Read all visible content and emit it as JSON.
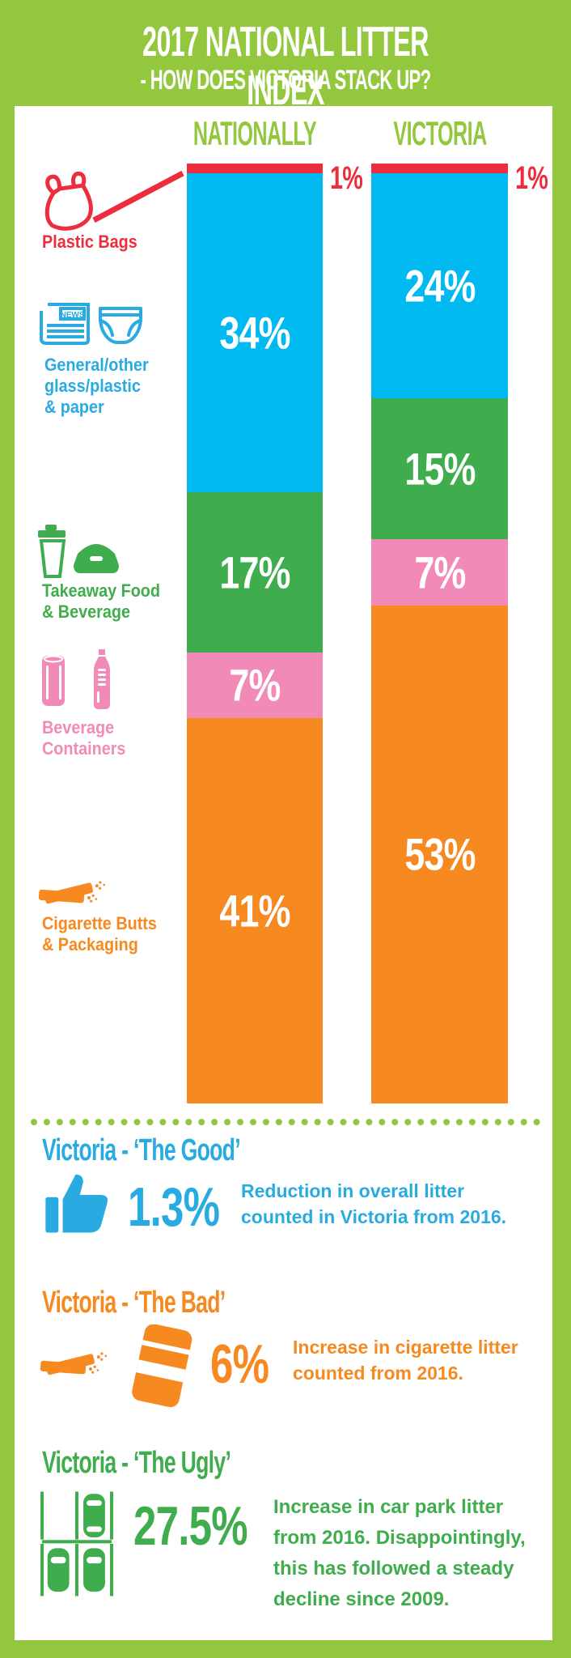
{
  "header": {
    "title": "2017 NATIONAL LITTER INDEX",
    "subtitle": "- HOW DOES VICTORIA STACK UP?"
  },
  "columns": [
    "NATIONALLY",
    "VICTORIA"
  ],
  "chart_data": {
    "type": "bar",
    "stacked": true,
    "unit": "%",
    "title": "2017 National Litter Index - How does Victoria stack up?",
    "categories": [
      "Plastic Bags",
      "General/other glass/plastic & paper",
      "Takeaway Food & Beverage",
      "Beverage Containers",
      "Cigarette Butts & Packaging"
    ],
    "category_ids": [
      "plastic-bags",
      "general-other-glass-plastic-paper",
      "takeaway-food-beverage",
      "beverage-containers",
      "cigarette-butts-packaging"
    ],
    "colors": [
      "#ED2C3E",
      "#00B9F0",
      "#3FAD4D",
      "#F28AB8",
      "#F6891F"
    ],
    "series": [
      {
        "name": "NATIONALLY",
        "values": [
          1,
          34,
          17,
          7,
          41
        ]
      },
      {
        "name": "VICTORIA",
        "values": [
          1,
          24,
          15,
          7,
          53
        ]
      }
    ],
    "legend_position": "left",
    "ylim": [
      0,
      100
    ],
    "grid": false
  },
  "legend": [
    {
      "id": "plastic-bags",
      "color": "#ED2C3E",
      "lines": [
        "Plastic Bags"
      ],
      "icons": [
        "plastic-bag-icon"
      ]
    },
    {
      "id": "general-other",
      "color": "#29ABE2",
      "lines": [
        "General/other",
        "glass/plastic",
        "& paper"
      ],
      "icons": [
        "newspaper-icon",
        "nappy-icon"
      ],
      "icon_text": "NEWS"
    },
    {
      "id": "takeaway",
      "color": "#3FAD4D",
      "lines": [
        "Takeaway Food",
        "& Beverage"
      ],
      "icons": [
        "takeaway-cup-icon",
        "food-container-icon"
      ]
    },
    {
      "id": "beverage",
      "color": "#F28AB8",
      "lines": [
        "Beverage",
        "Containers"
      ],
      "icons": [
        "drink-can-icon",
        "bottle-icon"
      ]
    },
    {
      "id": "cigarette",
      "color": "#F6891F",
      "lines": [
        "Cigarette Butts",
        "& Packaging"
      ],
      "icons": [
        "cigarette-butts-icon"
      ]
    }
  ],
  "sections": {
    "good": {
      "heading": "Victoria - ‘The Good’",
      "stat": "1.3%",
      "lines": [
        "Reduction in overall litter",
        "counted in Victoria from 2016."
      ],
      "color": "#29ABE2",
      "icon": "thumbs-up-icon"
    },
    "bad": {
      "heading": "Victoria - ‘The Bad’",
      "stat": "6%",
      "lines": [
        "Increase in cigarette litter",
        "counted from 2016."
      ],
      "color": "#F6891F",
      "icons": [
        "cigarette-butts-icon",
        "cigarette-pack-icon"
      ]
    },
    "ugly": {
      "heading": "Victoria - ‘The Ugly’",
      "stat": "27.5%",
      "lines": [
        "Increase in car park litter",
        "from 2016. Disappointingly,",
        "this has followed a steady",
        "decline since 2009."
      ],
      "color": "#3FAD4D",
      "icon": "car-park-icon"
    }
  },
  "colors": {
    "background": "#93C73E",
    "panel": "#ffffff",
    "red": "#ED2C3E",
    "cyan_bar": "#00B9F0",
    "cyan_text": "#29ABE2",
    "green": "#3FAD4D",
    "pink": "#F28AB8",
    "orange": "#F6891F",
    "white": "#ffffff"
  }
}
